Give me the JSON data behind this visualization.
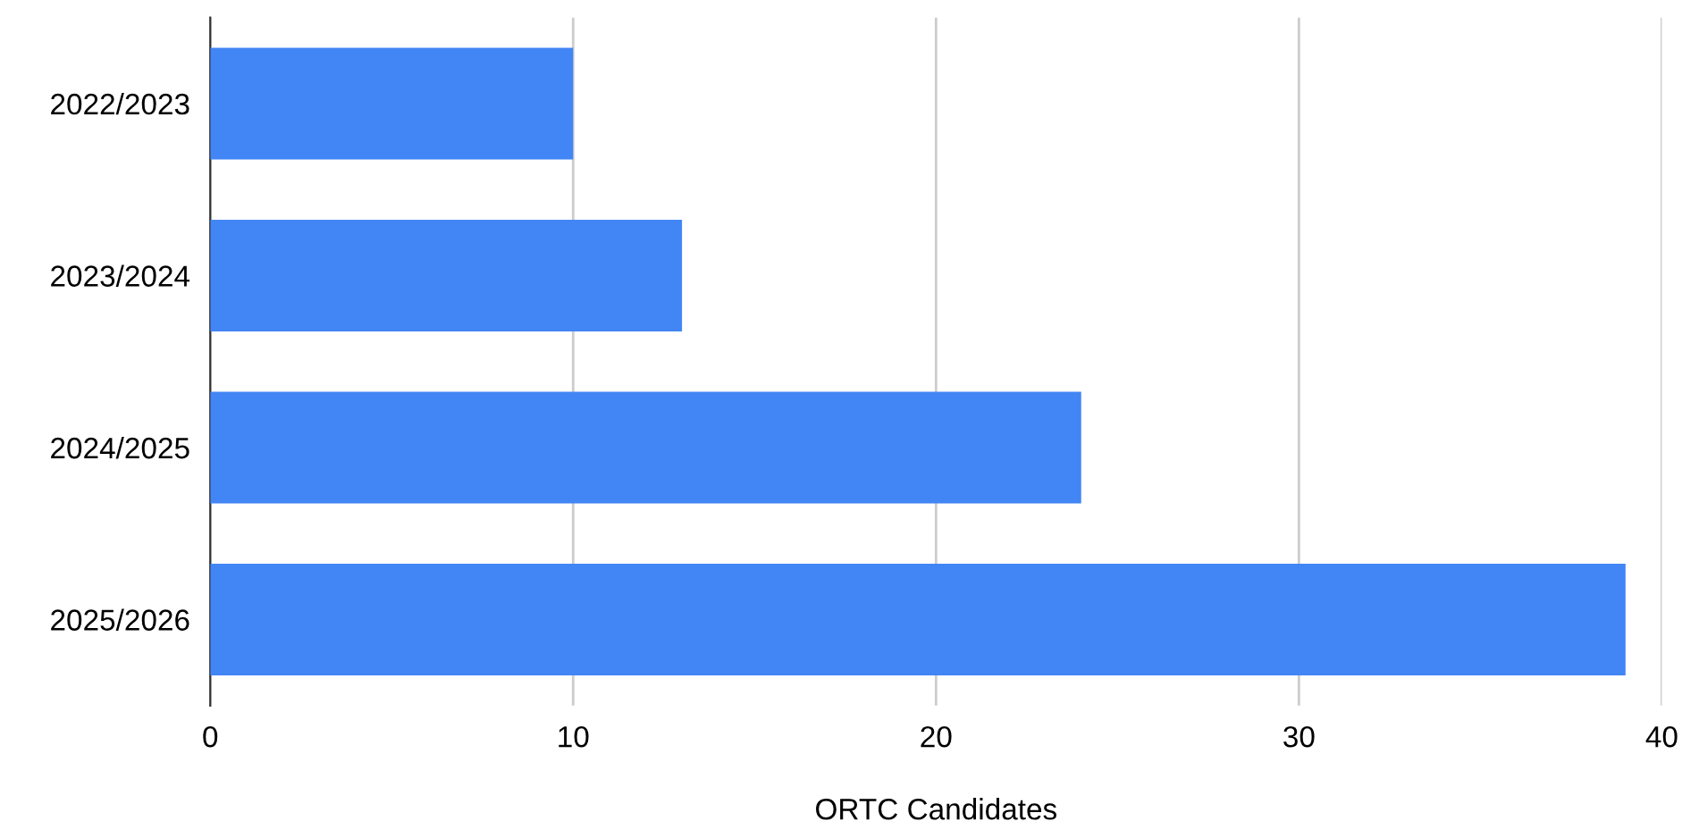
{
  "chart_data": {
    "type": "bar",
    "orientation": "horizontal",
    "xlabel": "ORTC Candidates",
    "categories": [
      "2022/2023",
      "2023/2024",
      "2024/2025",
      "2025/2026"
    ],
    "values": [
      10,
      13,
      24,
      39
    ],
    "color": "#4285f4",
    "xlim": [
      0,
      40
    ],
    "xticks": [
      0,
      10,
      20,
      30,
      40
    ],
    "grid": "x"
  }
}
